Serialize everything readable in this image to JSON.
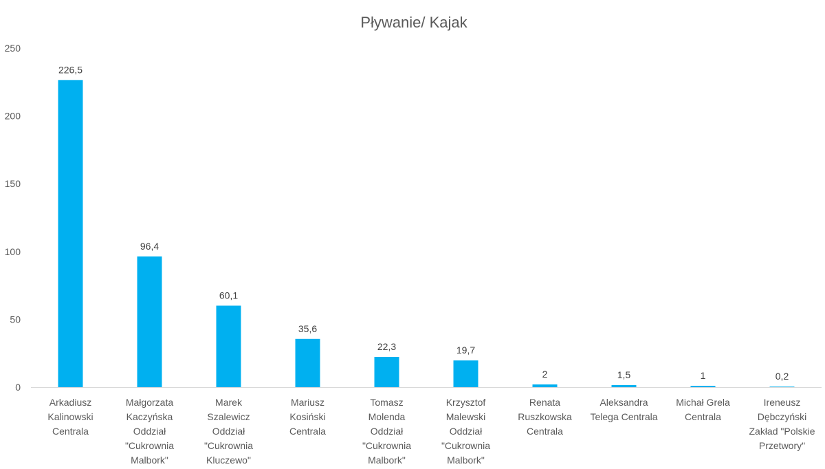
{
  "chart_data": {
    "type": "bar",
    "title": "Pływanie/ Kajak",
    "xlabel": "",
    "ylabel": "",
    "ylim": [
      0,
      250
    ],
    "yticks": [
      0,
      50,
      100,
      150,
      200,
      250
    ],
    "ytick_labels": [
      "0",
      "50",
      "100",
      "150",
      "200",
      "250"
    ],
    "grid": false,
    "legend": "none",
    "bar_color": "#00b0f0",
    "categories": [
      [
        "Arkadiusz",
        "Kalinowski",
        "Centrala"
      ],
      [
        "Małgorzata",
        "Kaczyńska",
        "Oddział",
        "\"Cukrownia",
        "Malbork\""
      ],
      [
        "Marek",
        "Szalewicz",
        "Oddział",
        "\"Cukrownia",
        "Kluczewo\""
      ],
      [
        "Mariusz",
        "Kosiński",
        "Centrala"
      ],
      [
        "Tomasz",
        "Molenda",
        "Oddział",
        "\"Cukrownia",
        "Malbork\""
      ],
      [
        "Krzysztof",
        "Malewski",
        "Oddział",
        "\"Cukrownia",
        "Malbork\""
      ],
      [
        "Renata",
        "Ruszkowska",
        "Centrala"
      ],
      [
        "Aleksandra",
        "Telega Centrala"
      ],
      [
        "Michał Grela",
        "Centrala"
      ],
      [
        "Ireneusz",
        "Dębczyński",
        "Zakład \"Polskie",
        "Przetwory\""
      ]
    ],
    "values": [
      226.5,
      96.4,
      60.1,
      35.6,
      22.3,
      19.7,
      2,
      1.5,
      1,
      0.2
    ],
    "value_labels": [
      "226,5",
      "96,4",
      "60,1",
      "35,6",
      "22,3",
      "19,7",
      "2",
      "1,5",
      "1",
      "0,2"
    ]
  }
}
